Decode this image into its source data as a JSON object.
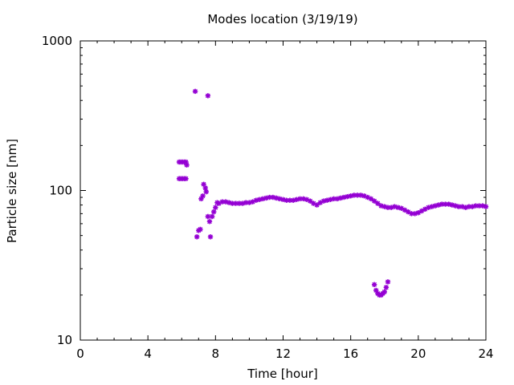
{
  "chart_data": {
    "type": "scatter",
    "title": "Modes location (3/19/19)",
    "xlabel": "Time [hour]",
    "ylabel": "Particle size [nm]",
    "xlim": [
      0,
      24
    ],
    "ylim": [
      10,
      1000
    ],
    "yscale": "log",
    "grid": false,
    "legend": "none",
    "xticks": [
      0,
      4,
      8,
      12,
      16,
      20,
      24
    ],
    "xtick_labels": [
      "0",
      "4",
      "8",
      "12",
      "16",
      "20",
      "24"
    ],
    "yticks": [
      10,
      100,
      1000
    ],
    "ytick_labels": [
      "10",
      "100",
      "1000"
    ],
    "marker_color": "#9400d3",
    "series": [
      {
        "points": [
          [
            5.85,
            155
          ],
          [
            5.95,
            155
          ],
          [
            6.05,
            155
          ],
          [
            6.15,
            155
          ],
          [
            6.25,
            155
          ],
          [
            6.3,
            148
          ],
          [
            5.85,
            120
          ],
          [
            5.95,
            120
          ],
          [
            6.05,
            120
          ],
          [
            6.15,
            120
          ],
          [
            6.25,
            120
          ],
          [
            6.8,
            460
          ],
          [
            7.55,
            430
          ],
          [
            6.9,
            49
          ],
          [
            7.0,
            54
          ],
          [
            7.1,
            55
          ],
          [
            7.15,
            88
          ],
          [
            7.25,
            92
          ],
          [
            7.3,
            110
          ],
          [
            7.4,
            104
          ],
          [
            7.45,
            98
          ],
          [
            7.55,
            67
          ],
          [
            7.65,
            62
          ],
          [
            7.7,
            49
          ],
          [
            7.8,
            67
          ],
          [
            7.9,
            72
          ],
          [
            8.0,
            77
          ],
          [
            8.1,
            83
          ],
          [
            8.2,
            82
          ],
          [
            8.4,
            84
          ],
          [
            8.6,
            84
          ],
          [
            8.8,
            83
          ],
          [
            9.0,
            82
          ],
          [
            9.2,
            82
          ],
          [
            9.4,
            82
          ],
          [
            9.6,
            82
          ],
          [
            9.8,
            83
          ],
          [
            10.0,
            83
          ],
          [
            10.2,
            84
          ],
          [
            10.4,
            86
          ],
          [
            10.6,
            87
          ],
          [
            10.8,
            88
          ],
          [
            11.0,
            89
          ],
          [
            11.2,
            90
          ],
          [
            11.4,
            90
          ],
          [
            11.6,
            89
          ],
          [
            11.8,
            88
          ],
          [
            12.0,
            87
          ],
          [
            12.2,
            86
          ],
          [
            12.4,
            86
          ],
          [
            12.6,
            86
          ],
          [
            12.8,
            87
          ],
          [
            13.0,
            88
          ],
          [
            13.2,
            88
          ],
          [
            13.4,
            87
          ],
          [
            13.6,
            85
          ],
          [
            13.8,
            82
          ],
          [
            14.0,
            80
          ],
          [
            14.2,
            83
          ],
          [
            14.4,
            85
          ],
          [
            14.6,
            86
          ],
          [
            14.8,
            87
          ],
          [
            15.0,
            88
          ],
          [
            15.2,
            88
          ],
          [
            15.4,
            89
          ],
          [
            15.6,
            90
          ],
          [
            15.8,
            91
          ],
          [
            16.0,
            92
          ],
          [
            16.2,
            93
          ],
          [
            16.4,
            93
          ],
          [
            16.6,
            93
          ],
          [
            16.8,
            92
          ],
          [
            17.0,
            90
          ],
          [
            17.2,
            88
          ],
          [
            17.4,
            85
          ],
          [
            17.6,
            82
          ],
          [
            17.8,
            79
          ],
          [
            18.0,
            78
          ],
          [
            18.2,
            77
          ],
          [
            18.4,
            77
          ],
          [
            18.6,
            78
          ],
          [
            18.8,
            77
          ],
          [
            19.0,
            76
          ],
          [
            19.2,
            74
          ],
          [
            19.4,
            72
          ],
          [
            19.6,
            70
          ],
          [
            19.8,
            70
          ],
          [
            20.0,
            71
          ],
          [
            20.2,
            73
          ],
          [
            20.4,
            75
          ],
          [
            20.6,
            77
          ],
          [
            20.8,
            78
          ],
          [
            21.0,
            79
          ],
          [
            21.2,
            80
          ],
          [
            21.4,
            81
          ],
          [
            21.6,
            81
          ],
          [
            21.8,
            81
          ],
          [
            22.0,
            80
          ],
          [
            22.2,
            79
          ],
          [
            22.4,
            78
          ],
          [
            22.6,
            78
          ],
          [
            22.8,
            77
          ],
          [
            23.0,
            78
          ],
          [
            23.2,
            78
          ],
          [
            23.4,
            79
          ],
          [
            23.6,
            79
          ],
          [
            23.8,
            79
          ],
          [
            24.0,
            78
          ],
          [
            17.4,
            23.5
          ],
          [
            17.5,
            21.5
          ],
          [
            17.6,
            20.5
          ],
          [
            17.7,
            20
          ],
          [
            17.8,
            20
          ],
          [
            17.9,
            20.5
          ],
          [
            18.0,
            21
          ],
          [
            18.1,
            22.5
          ],
          [
            18.2,
            24.5
          ]
        ]
      }
    ]
  }
}
